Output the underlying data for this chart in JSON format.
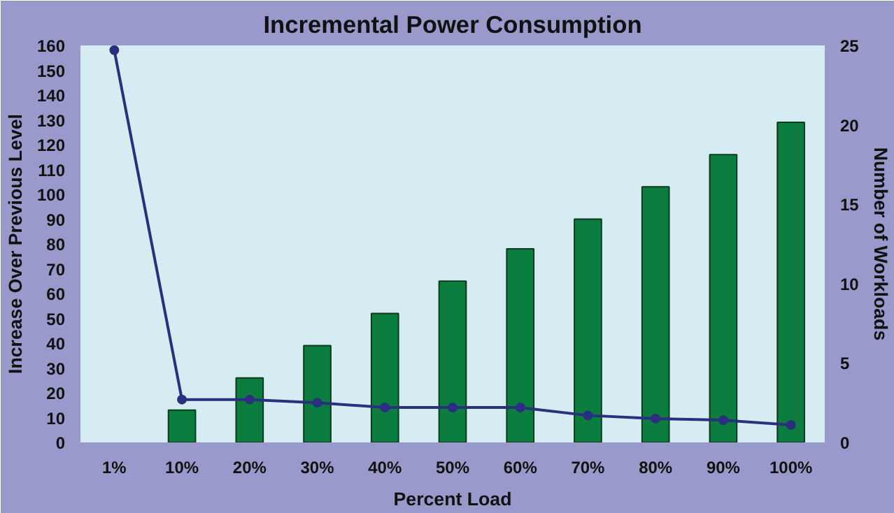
{
  "chart_data": {
    "type": "bar",
    "title": "Incremental Power Consumption",
    "xlabel": "Percent Load",
    "ylabel": "Increase Over Previous Level",
    "y2label": "Number of Workloads",
    "categories": [
      "1%",
      "10%",
      "20%",
      "30%",
      "40%",
      "50%",
      "60%",
      "70%",
      "80%",
      "90%",
      "100%"
    ],
    "series": [
      {
        "color": "#0b7d3e",
        "values": [
          null,
          13,
          26,
          39,
          52,
          65,
          78,
          90,
          103,
          116,
          129
        ]
      },
      {
        "type": "line",
        "axis": "y2",
        "color": "#2b2f80",
        "marker": "circle",
        "values": [
          24.7,
          2.7,
          2.7,
          2.5,
          2.2,
          2.2,
          2.2,
          1.7,
          1.5,
          1.4,
          1.1
        ]
      }
    ],
    "ylim": [
      0,
      160
    ],
    "yticks": [
      0,
      10,
      20,
      30,
      40,
      50,
      60,
      70,
      80,
      90,
      100,
      110,
      120,
      130,
      140,
      150,
      160
    ],
    "y2lim": [
      0,
      25
    ],
    "y2ticks": [
      0,
      5,
      10,
      15,
      20,
      25
    ],
    "grid": false
  }
}
